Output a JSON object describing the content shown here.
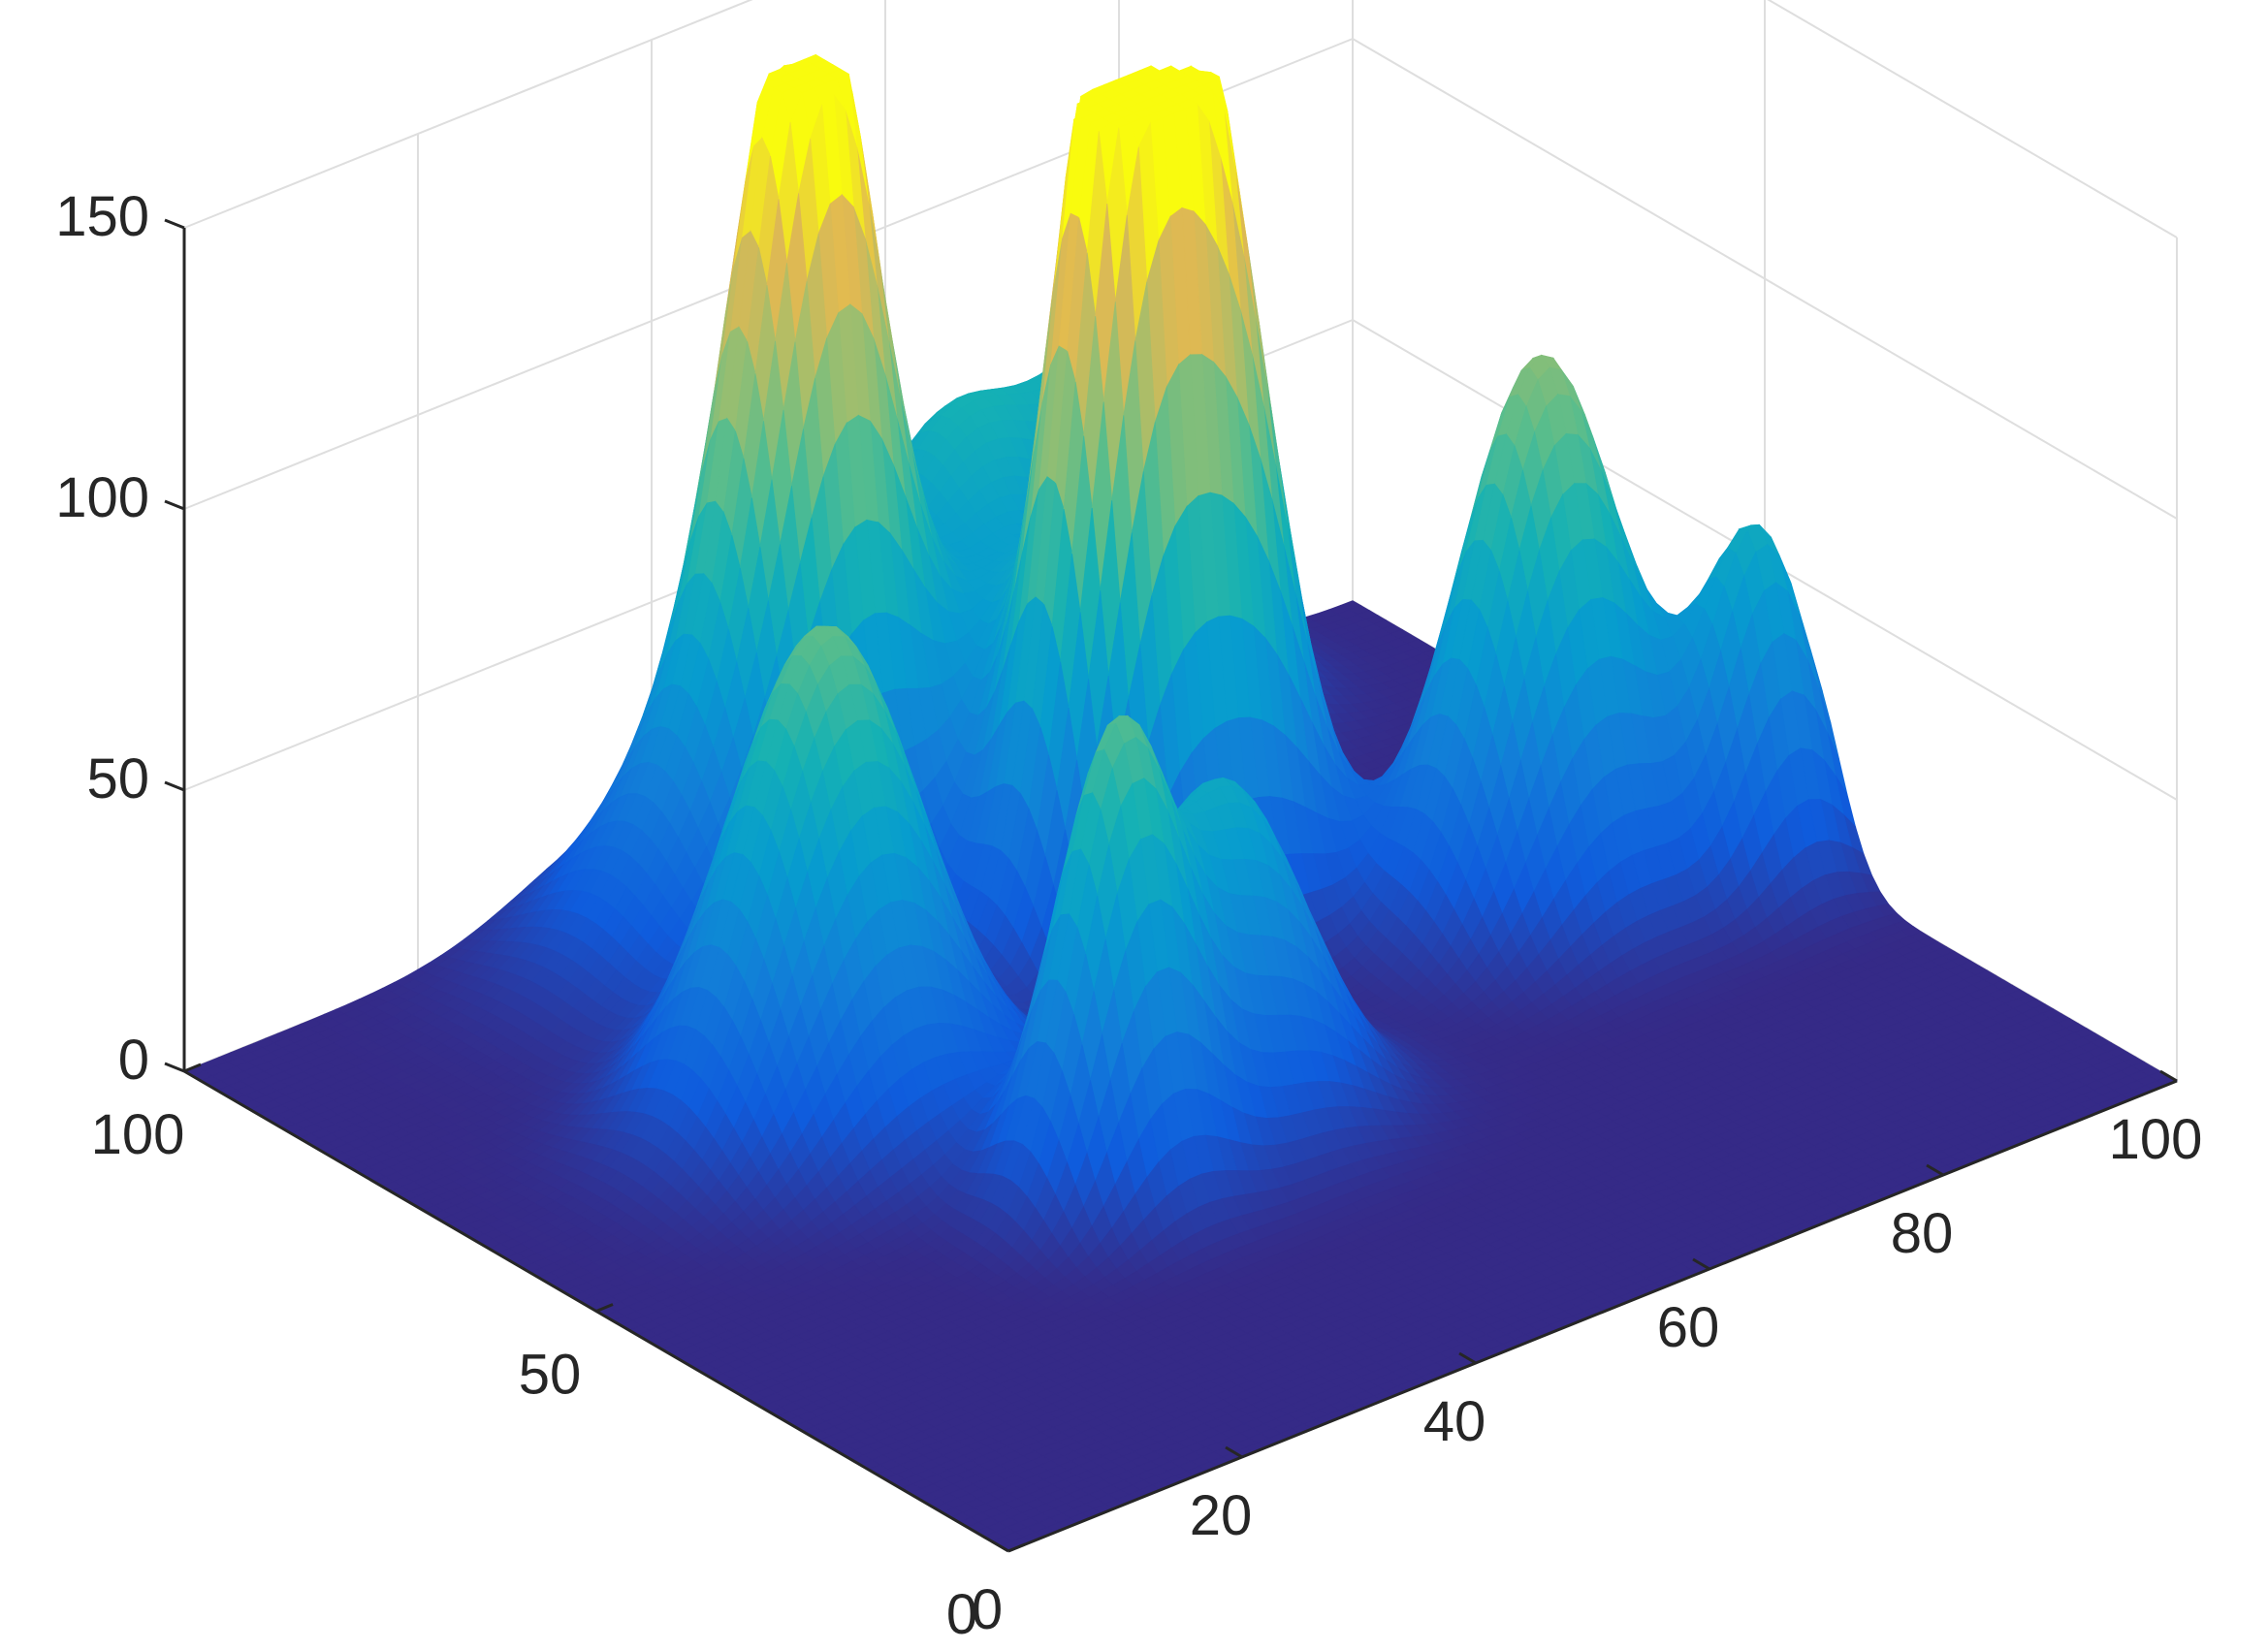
{
  "chart_data": {
    "type": "surface",
    "title": "",
    "xlabel": "",
    "ylabel": "",
    "zlabel": "",
    "xlim": [
      0,
      100
    ],
    "ylim": [
      0,
      100
    ],
    "zlim": [
      0,
      150
    ],
    "xticks": [
      0,
      20,
      40,
      60,
      80,
      100
    ],
    "yticks": [
      0,
      50,
      100
    ],
    "zticks": [
      0,
      50,
      100,
      150
    ],
    "xtick_labels": [
      "0",
      "20",
      "40",
      "60",
      "80",
      "100"
    ],
    "ytick_labels": [
      "0",
      "50",
      "100"
    ],
    "ztick_labels": [
      "0",
      "50",
      "100",
      "150"
    ],
    "view": "3-D default",
    "grid": true,
    "colormap": "parula",
    "grid_resolution": 100,
    "surface_peaks": [
      {
        "x": 37,
        "y": 88,
        "height": 40,
        "width": 8
      },
      {
        "x": 28,
        "y": 62,
        "height": 88,
        "width": 7
      },
      {
        "x": 45,
        "y": 88,
        "height": 145,
        "width": 5
      },
      {
        "x": 63,
        "y": 96,
        "height": 65,
        "width": 8
      },
      {
        "x": 78,
        "y": 96,
        "height": 55,
        "width": 6
      },
      {
        "x": 57,
        "y": 68,
        "height": 138,
        "width": 4.5
      },
      {
        "x": 65,
        "y": 68,
        "height": 120,
        "width": 5
      },
      {
        "x": 36,
        "y": 38,
        "height": 78,
        "width": 4.5
      },
      {
        "x": 48,
        "y": 42,
        "height": 60,
        "width": 6
      },
      {
        "x": 83,
        "y": 53,
        "height": 98,
        "width": 6
      },
      {
        "x": 96,
        "y": 45,
        "height": 60,
        "width": 4
      },
      {
        "x": 60,
        "y": 78,
        "height": 50,
        "width": 7
      }
    ]
  }
}
